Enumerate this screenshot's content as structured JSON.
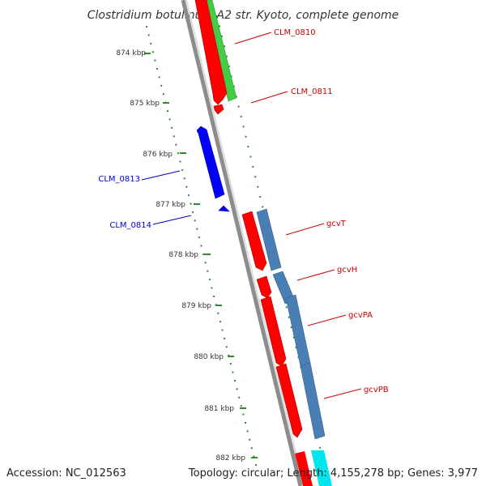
{
  "title": "Clostridium botulinum A2 str. Kyoto, complete genome",
  "footer": {
    "accession": "Accession: NC_012563",
    "topology": "Topology: circular; Length: 4,155,278 bp; Genes: 3,977"
  },
  "colors": {
    "backbone": "#8c8c8c",
    "tick": "#2e8b2e",
    "red_gene": "#ff0000",
    "blue_gene": "#0000ff",
    "green_feature": "#44cc44",
    "steel_feature": "#4a7fb5",
    "cyan_feature": "#00e5ee",
    "label_red": "#cc0000",
    "label_blue": "#0000cc"
  },
  "scale": {
    "labels": [
      "874 kbp",
      "875 kbp",
      "876 kbp",
      "877 kbp",
      "878 kbp",
      "879 kbp",
      "880 kbp",
      "881 kbp",
      "882 kbp"
    ]
  },
  "genes": [
    {
      "name": "CLM_0810",
      "color_key": "red_gene"
    },
    {
      "name": "CLM_0811",
      "color_key": "red_gene"
    },
    {
      "name": "CLM_0813",
      "color_key": "blue_gene"
    },
    {
      "name": "CLM_0814",
      "color_key": "blue_gene"
    },
    {
      "name": "gcvT",
      "color_key": "red_gene"
    },
    {
      "name": "gcvH",
      "color_key": "red_gene"
    },
    {
      "name": "gcvPA",
      "color_key": "red_gene"
    },
    {
      "name": "gcvPB",
      "color_key": "red_gene"
    }
  ]
}
